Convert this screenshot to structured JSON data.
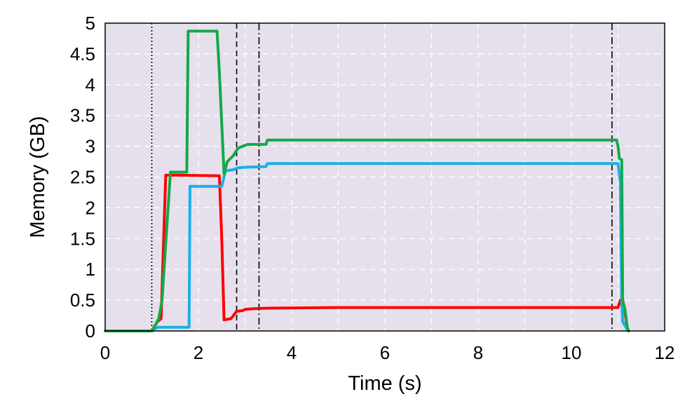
{
  "chart_data": {
    "type": "line",
    "title": "",
    "xlabel": "Time (s)",
    "ylabel": "Memory (GB)",
    "xlim": [
      0,
      12
    ],
    "ylim": [
      0,
      5
    ],
    "xticks": [
      0,
      2,
      4,
      6,
      8,
      10,
      12
    ],
    "yticks": [
      0,
      0.5,
      1,
      1.5,
      2,
      2.5,
      3,
      3.5,
      4,
      4.5,
      5
    ],
    "grid": true,
    "legend": "none",
    "background": "#e6e0ec",
    "vlines": [
      {
        "x": 1.0,
        "style": "dotted"
      },
      {
        "x": 2.82,
        "style": "dashed"
      },
      {
        "x": 3.3,
        "style": "dashdot"
      },
      {
        "x": 10.87,
        "style": "dashdot"
      }
    ],
    "series": [
      {
        "color": "#ff0000",
        "points": [
          [
            0,
            0
          ],
          [
            1.0,
            0
          ],
          [
            1.08,
            0.1
          ],
          [
            1.12,
            0.15
          ],
          [
            1.2,
            0.2
          ],
          [
            1.3,
            2.53
          ],
          [
            1.6,
            2.53
          ],
          [
            2.45,
            2.52
          ],
          [
            2.5,
            1.5
          ],
          [
            2.55,
            0.18
          ],
          [
            2.7,
            0.2
          ],
          [
            2.82,
            0.32
          ],
          [
            2.95,
            0.33
          ],
          [
            3.0,
            0.35
          ],
          [
            3.15,
            0.36
          ],
          [
            3.5,
            0.37
          ],
          [
            5,
            0.38
          ],
          [
            10.97,
            0.38
          ],
          [
            11.0,
            0.38
          ],
          [
            11.05,
            0.5
          ],
          [
            11.1,
            0.5
          ],
          [
            11.15,
            0.3
          ],
          [
            11.2,
            0.02
          ],
          [
            11.22,
            0
          ]
        ]
      },
      {
        "color": "#1ab0e8",
        "points": [
          [
            0,
            0
          ],
          [
            1.0,
            0
          ],
          [
            1.1,
            0.05
          ],
          [
            1.13,
            0.06
          ],
          [
            1.8,
            0.06
          ],
          [
            1.82,
            2.35
          ],
          [
            2.5,
            2.35
          ],
          [
            2.58,
            2.6
          ],
          [
            2.75,
            2.62
          ],
          [
            2.85,
            2.65
          ],
          [
            3.0,
            2.66
          ],
          [
            3.45,
            2.67
          ],
          [
            3.48,
            2.72
          ],
          [
            5,
            2.72
          ],
          [
            10.97,
            2.72
          ],
          [
            11.0,
            2.72
          ],
          [
            11.05,
            2.4
          ],
          [
            11.08,
            0.5
          ],
          [
            11.1,
            0.15
          ],
          [
            11.2,
            0.02
          ],
          [
            11.22,
            0
          ]
        ]
      },
      {
        "color": "#14a84a",
        "points": [
          [
            0,
            0
          ],
          [
            1.0,
            0
          ],
          [
            1.08,
            0.1
          ],
          [
            1.15,
            0.2
          ],
          [
            1.22,
            0.5
          ],
          [
            1.4,
            2.58
          ],
          [
            1.75,
            2.58
          ],
          [
            1.78,
            4.87
          ],
          [
            2.4,
            4.87
          ],
          [
            2.45,
            4.2
          ],
          [
            2.55,
            2.55
          ],
          [
            2.62,
            2.75
          ],
          [
            2.75,
            2.85
          ],
          [
            2.85,
            2.97
          ],
          [
            2.95,
            3.0
          ],
          [
            3.05,
            3.03
          ],
          [
            3.45,
            3.03
          ],
          [
            3.48,
            3.1
          ],
          [
            5,
            3.1
          ],
          [
            10.97,
            3.1
          ],
          [
            11.0,
            3.0
          ],
          [
            11.03,
            2.8
          ],
          [
            11.08,
            2.78
          ],
          [
            11.1,
            0.5
          ],
          [
            11.15,
            0.35
          ],
          [
            11.2,
            0.05
          ],
          [
            11.23,
            0
          ]
        ]
      }
    ]
  }
}
